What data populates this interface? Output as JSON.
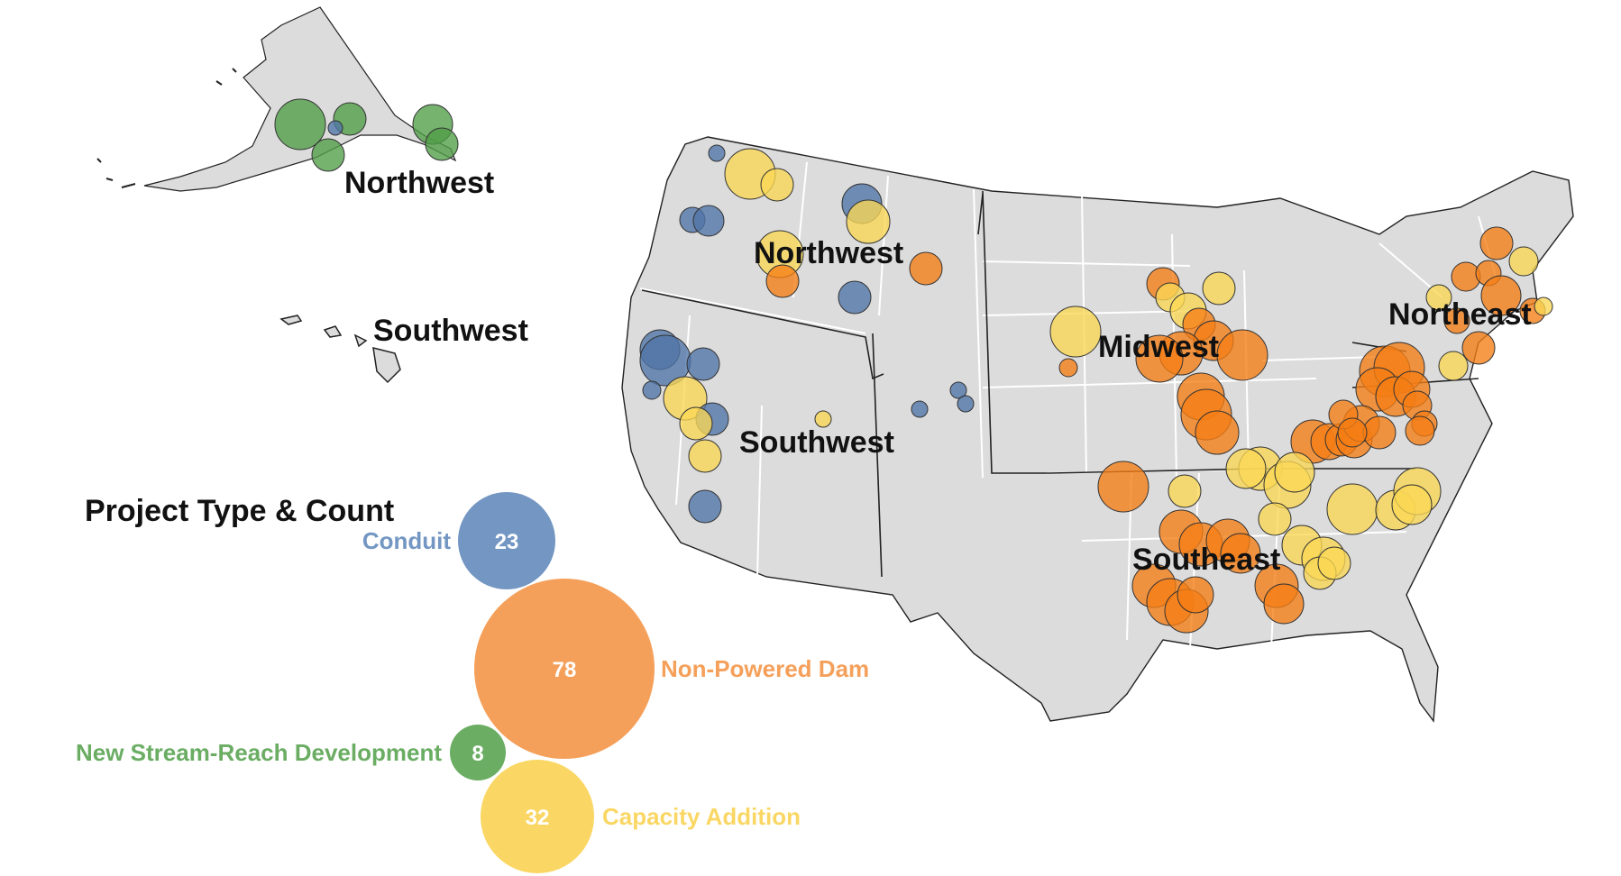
{
  "legend": {
    "title": "Project Type & Count",
    "items": [
      {
        "key": "conduit",
        "label": "Conduit",
        "count": "23",
        "color": "#7396c2"
      },
      {
        "key": "npd",
        "label": "Non-Powered Dam",
        "count": "78",
        "color": "#f5a05a"
      },
      {
        "key": "nsd",
        "label": "New Stream-Reach Development",
        "count": "8",
        "color": "#6aad63"
      },
      {
        "key": "cap",
        "label": "Capacity Addition",
        "count": "32",
        "color": "#fad764"
      }
    ]
  },
  "regions": {
    "alaska_northwest": "Northwest",
    "hawaii_southwest": "Southwest",
    "northwest": "Northwest",
    "southwest": "Southwest",
    "midwest": "Midwest",
    "southeast": "Southeast",
    "northeast": "Northeast"
  },
  "colors": {
    "land": "#dcdcdc",
    "region_border": "#222222",
    "state_border": "#ffffff",
    "npd_fill": "#f57d14",
    "cap_fill": "#fad755",
    "conduit_fill": "#4f74a8",
    "nsd_fill": "#4f9e46"
  }
}
